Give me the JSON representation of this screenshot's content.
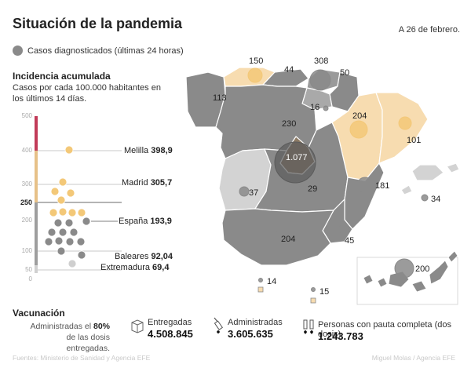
{
  "header": {
    "title": "Situación de la pandemia",
    "date": "A 26 de febrero."
  },
  "legend": {
    "label": "Casos diagnosticados (últimas 24 horas)"
  },
  "incidence": {
    "title": "Incidencia acumulada",
    "subtitle": "Casos por cada 100.000 habitantes en los últimos 14 días.",
    "scale_ticks": [
      "500",
      "400",
      "300",
      "250",
      "200",
      "100",
      "50",
      "0"
    ],
    "highlight_tick": "250",
    "labels": [
      {
        "name": "Melilla",
        "value": "398,9"
      },
      {
        "name": "Madrid",
        "value": "305,7"
      },
      {
        "name": "España",
        "value": "193,9"
      },
      {
        "name": "Baleares",
        "value": "92,04"
      },
      {
        "name": "Extremadura",
        "value": "69,4"
      }
    ]
  },
  "chart_data": {
    "type": "scatter",
    "title": "Incidencia acumulada",
    "ylabel": "Casos por cada 100.000 habitantes en los últimos 14 días",
    "ylim": [
      0,
      500
    ],
    "labeled_points": [
      {
        "name": "Melilla",
        "y": 398.9
      },
      {
        "name": "Madrid",
        "y": 305.7
      },
      {
        "name": "España",
        "y": 193.9
      },
      {
        "name": "Baleares",
        "y": 92.04
      },
      {
        "name": "Extremadura",
        "y": 69.4
      }
    ]
  },
  "map": {
    "regions": [
      {
        "name": "Galicia",
        "cases": "113"
      },
      {
        "name": "Asturias",
        "cases": "150"
      },
      {
        "name": "Cantabria",
        "cases": "44"
      },
      {
        "name": "País Vasco",
        "cases": "308"
      },
      {
        "name": "Navarra",
        "cases": "50"
      },
      {
        "name": "La Rioja",
        "cases": "16"
      },
      {
        "name": "Aragón",
        "cases": "204"
      },
      {
        "name": "Cataluña",
        "cases": "101"
      },
      {
        "name": "Castilla y León",
        "cases": "230"
      },
      {
        "name": "Madrid",
        "cases": "1.077"
      },
      {
        "name": "Extremadura",
        "cases": "37"
      },
      {
        "name": "Castilla-La Mancha",
        "cases": "29"
      },
      {
        "name": "Comunidad Valenciana",
        "cases": "181"
      },
      {
        "name": "Baleares",
        "cases": "34"
      },
      {
        "name": "Andalucía",
        "cases": "204"
      },
      {
        "name": "Murcia",
        "cases": "45"
      },
      {
        "name": "Canarias",
        "cases": "200"
      },
      {
        "name": "Ceuta",
        "cases": "14"
      },
      {
        "name": "Melilla",
        "cases": "15"
      }
    ]
  },
  "vaccination": {
    "title": "Vacunación",
    "text_prefix": "Administradas el",
    "percent": "80%",
    "text_suffix": "de las dosis entregadas.",
    "delivered_label": "Entregadas",
    "delivered_value": "4.508.845",
    "administered_label": "Administradas",
    "administered_value": "3.605.635",
    "complete_label": "Personas con pauta completa (dos dosis)",
    "complete_value": "1.243.783"
  },
  "footer": {
    "sources": "Fuentes: Ministerio de Sanidad y Agencia EFE",
    "credit": "Miguel Molas / Agencia EFE"
  },
  "colors": {
    "high": "#777777",
    "mid": "#a3a3a3",
    "low": "#d3d3d3",
    "highlight": "#f7dcb0",
    "madrid": "#8c7a64",
    "bubble": "#8a8a8a",
    "bubble_orange": "#f3c878",
    "scale_red": "#c23b59"
  }
}
